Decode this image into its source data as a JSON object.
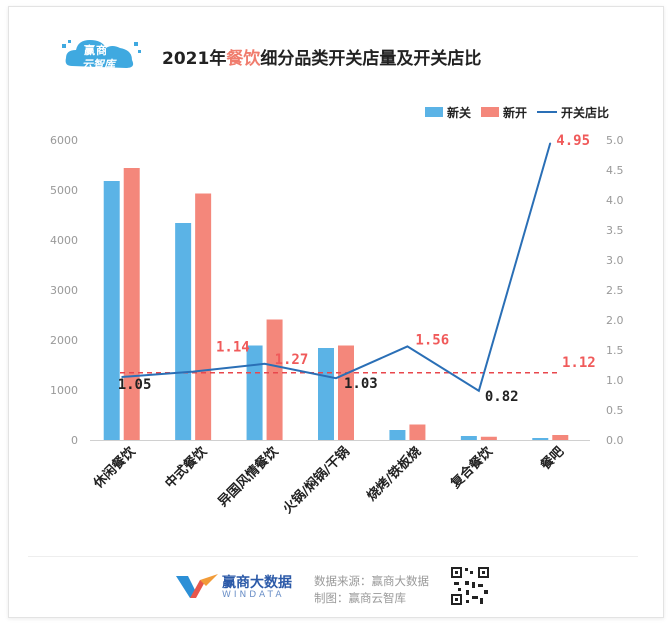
{
  "header": {
    "logo_line1": "赢商",
    "logo_line2": "云智库",
    "title_prefix": "2021年",
    "title_highlight": "餐饮",
    "title_suffix": "细分品类开关店量及开关店比"
  },
  "legend": {
    "close": "新关",
    "open": "新开",
    "ratio": "开关店比"
  },
  "colors": {
    "close": "#5bb3e6",
    "open": "#f4877b",
    "ratio": "#2a6fb6",
    "ratio_label_red": "#f05a5a",
    "dashed": "#e8474c"
  },
  "footer": {
    "brand": "赢商大数据",
    "brand_en": "WINDATA",
    "source": "数据来源：赢商大数据",
    "maker": "制图：赢商云智库"
  },
  "watermark": "赢商云智库",
  "chart_data": {
    "type": "bar",
    "categories": [
      "休闲餐饮",
      "中式餐饮",
      "异国风情餐饮",
      "火锅/焖锅/干锅",
      "烧烤/铁板烧",
      "复合餐饮",
      "餐吧"
    ],
    "series": [
      {
        "name": "新关",
        "values": [
          5180,
          4340,
          1890,
          1840,
          200,
          80,
          40
        ]
      },
      {
        "name": "新开",
        "values": [
          5440,
          4930,
          2410,
          1890,
          310,
          65,
          100
        ]
      },
      {
        "name": "开关店比",
        "type": "line",
        "axis": "right",
        "values": [
          1.05,
          1.14,
          1.27,
          1.03,
          1.56,
          0.82,
          4.95
        ]
      }
    ],
    "value_labels": [
      "1.05",
      "1.14",
      "1.27",
      "1.03",
      "1.56",
      "0.82",
      "4.95"
    ],
    "average_line": {
      "value": 1.12,
      "label": "1.12"
    },
    "ylim_left": [
      0,
      6000
    ],
    "yticks_left": [
      "0",
      "1000",
      "2000",
      "3000",
      "4000",
      "5000",
      "6000"
    ],
    "ylim_right": [
      0,
      5.0
    ],
    "yticks_right": [
      "0.0",
      "0.5",
      "1.0",
      "1.5",
      "2.0",
      "2.5",
      "3.0",
      "3.5",
      "4.0",
      "4.5",
      "5.0"
    ]
  }
}
